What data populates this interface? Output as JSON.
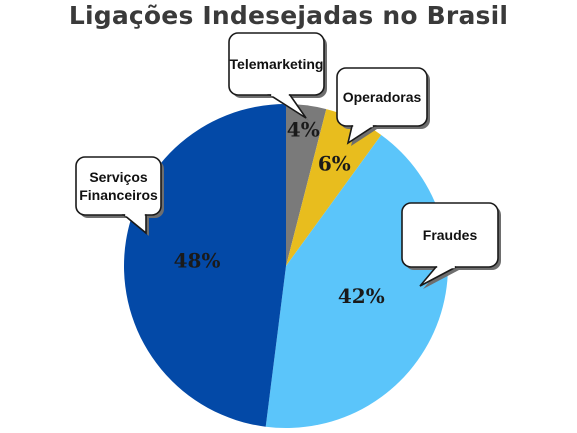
{
  "chart_data": {
    "type": "pie",
    "title": "Ligações Indesejadas no Brasil",
    "slices": [
      {
        "label": "Telemarketing",
        "value": 4,
        "value_label": "4%",
        "color": "#7a7a7a"
      },
      {
        "label": "Operadoras",
        "value": 6,
        "value_label": "6%",
        "color": "#e8bd1e"
      },
      {
        "label": "Fraudes",
        "value": 42,
        "value_label": "42%",
        "color": "#5bc5fa"
      },
      {
        "label": "Serviços Financeiros",
        "value": 48,
        "value_label": "48%",
        "color": "#0349a7"
      }
    ],
    "start_angle_deg": 0,
    "direction": "clockwise"
  }
}
